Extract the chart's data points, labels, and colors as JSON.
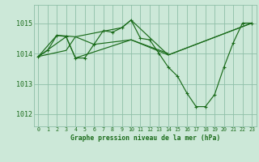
{
  "title": "Graphe pression niveau de la mer (hPa)",
  "background_color": "#cce8d8",
  "grid_color": "#8fbfa8",
  "line_color": "#1a6b1a",
  "xlim": [
    -0.5,
    23.5
  ],
  "ylim": [
    1011.6,
    1015.6
  ],
  "yticks": [
    1012,
    1013,
    1014,
    1015
  ],
  "xticks": [
    0,
    1,
    2,
    3,
    4,
    5,
    6,
    7,
    8,
    9,
    10,
    11,
    12,
    13,
    14,
    15,
    16,
    17,
    18,
    19,
    20,
    21,
    22,
    23
  ],
  "series1": [
    [
      0,
      1013.9
    ],
    [
      1,
      1014.1
    ],
    [
      2,
      1014.6
    ],
    [
      3,
      1014.55
    ],
    [
      4,
      1013.85
    ],
    [
      5,
      1013.85
    ],
    [
      6,
      1014.3
    ],
    [
      7,
      1014.75
    ],
    [
      8,
      1014.7
    ],
    [
      9,
      1014.85
    ],
    [
      10,
      1015.1
    ],
    [
      11,
      1014.5
    ],
    [
      12,
      1014.45
    ],
    [
      13,
      1014.0
    ],
    [
      14,
      1013.55
    ],
    [
      15,
      1013.25
    ],
    [
      16,
      1012.7
    ],
    [
      17,
      1012.25
    ],
    [
      18,
      1012.25
    ],
    [
      19,
      1012.65
    ],
    [
      20,
      1013.55
    ],
    [
      21,
      1014.35
    ],
    [
      22,
      1015.0
    ],
    [
      23,
      1015.0
    ]
  ],
  "series2": [
    [
      0,
      1013.9
    ],
    [
      3,
      1014.55
    ],
    [
      4,
      1013.85
    ],
    [
      10,
      1014.45
    ],
    [
      14,
      1013.95
    ],
    [
      23,
      1015.0
    ]
  ],
  "series3": [
    [
      0,
      1013.9
    ],
    [
      2,
      1014.6
    ],
    [
      4,
      1014.55
    ],
    [
      9,
      1014.85
    ],
    [
      10,
      1015.1
    ],
    [
      14,
      1013.95
    ],
    [
      23,
      1015.0
    ]
  ],
  "series4": [
    [
      0,
      1013.9
    ],
    [
      3,
      1014.1
    ],
    [
      4,
      1014.55
    ],
    [
      6,
      1014.3
    ],
    [
      10,
      1014.45
    ],
    [
      14,
      1014.0
    ]
  ]
}
